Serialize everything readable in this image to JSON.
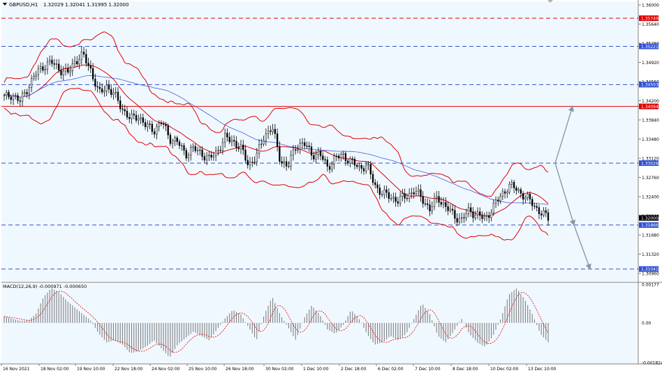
{
  "header": {
    "symbol": "GBPUSD,H1",
    "ohlc": "1.32029 1.32041 1.31995 1.32000"
  },
  "macd_label": "MACD(12,26,9) -0.000971 -0.000650",
  "colors": {
    "background": "#f0f8ff",
    "grid": "#c8d2dc",
    "candle": "#000000",
    "bollinger": "#e00000",
    "ma": "#4060e0",
    "level_blue": "#3050d0",
    "level_red": "#e00000",
    "arrow": "#8a98a8",
    "macd_hist": "#808080",
    "macd_signal": "#e00000"
  },
  "chart_data": [
    {
      "type": "candlestick",
      "instrument": "GBPUSD",
      "timeframe": "H1",
      "last_price": "1.32000",
      "ylim": [
        1.3096,
        1.36
      ],
      "y_ticks": [
        "1.36000",
        "1.35640",
        "1.35280",
        "1.34920",
        "1.34560",
        "1.34200",
        "1.33840",
        "1.33480",
        "1.33120",
        "1.32760",
        "1.32400",
        "1.32040",
        "1.31680",
        "1.31320",
        "1.30960"
      ],
      "x_ticks": [
        "16 Nov 2021",
        "18 Nov 02:00",
        "19 Nov 10:00",
        "22 Nov 18:00",
        "24 Nov 02:00",
        "25 Nov 10:00",
        "26 Nov 18:00",
        "30 Nov 02:00",
        "1 Dec 10:00",
        "2 Dec 18:00",
        "6 Dec 02:00",
        "7 Dec 10:00",
        "8 Dec 18:00",
        "10 Dec 02:00",
        "13 Dec 10:00"
      ],
      "close_series": [
        1.3426,
        1.3432,
        1.3418,
        1.3445,
        1.347,
        1.3486,
        1.3492,
        1.348,
        1.347,
        1.3495,
        1.3505,
        1.3478,
        1.3432,
        1.3448,
        1.343,
        1.3405,
        1.3385,
        1.3392,
        1.3372,
        1.3365,
        1.338,
        1.335,
        1.3342,
        1.332,
        1.333,
        1.3322,
        1.331,
        1.3325,
        1.335,
        1.3345,
        1.333,
        1.33,
        1.3315,
        1.3355,
        1.337,
        1.331,
        1.3296,
        1.3335,
        1.334,
        1.332,
        1.332,
        1.3296,
        1.3312,
        1.3318,
        1.3305,
        1.3295,
        1.3298,
        1.3262,
        1.3245,
        1.324,
        1.3232,
        1.3242,
        1.325,
        1.3238,
        1.3215,
        1.324,
        1.322,
        1.3206,
        1.3195,
        1.3215,
        1.3205,
        1.3198,
        1.322,
        1.3242,
        1.326,
        1.3255,
        1.324,
        1.3228,
        1.321,
        1.32
      ],
      "levels": [
        {
          "label": "1.35749",
          "value": 1.35749,
          "color": "red",
          "style": "dashed"
        },
        {
          "label": "1.35221",
          "value": 1.35221,
          "color": "blue",
          "style": "dashed"
        },
        {
          "label": "1.34503",
          "value": 1.34503,
          "color": "blue",
          "style": "dashed"
        },
        {
          "label": "1.34094",
          "value": 1.34094,
          "color": "red",
          "style": "solid"
        },
        {
          "label": "1.33028",
          "value": 1.33028,
          "color": "blue",
          "style": "dashed"
        },
        {
          "label": "1.31866",
          "value": 1.31866,
          "color": "blue",
          "style": "dashed"
        },
        {
          "label": "1.31041",
          "value": 1.31041,
          "color": "blue",
          "style": "dashed"
        }
      ],
      "arrows": [
        {
          "from": 1.33028,
          "to": 1.34094
        },
        {
          "from": 1.33028,
          "to": 1.31866
        },
        {
          "from": 1.31866,
          "to": 1.31041
        }
      ]
    },
    {
      "type": "bar",
      "name": "MACD(12,26,9)",
      "values_text": "-0.000971 -0.000650",
      "y_ticks": [
        "0.00177",
        "0.00",
        "-0.001824"
      ],
      "ylim": [
        -0.001824,
        0.00177
      ],
      "histogram": [
        0.0003,
        0.0002,
        0.0001,
        0.0001,
        0.0004,
        0.0012,
        0.0016,
        0.0014,
        0.001,
        0.0007,
        0.0004,
        0.0001,
        -0.0005,
        -0.0009,
        -0.0008,
        -0.001,
        -0.0014,
        -0.0013,
        -0.0011,
        -0.0008,
        -0.0012,
        -0.0016,
        -0.001,
        -0.0007,
        -0.0004,
        -0.0006,
        -0.0008,
        -0.0003,
        0.0002,
        0.0006,
        0.0004,
        -0.0002,
        -0.0008,
        0.0004,
        0.0012,
        0.0004,
        -0.0002,
        -0.0008,
        0.0002,
        0.0008,
        0.0004,
        -0.0003,
        -0.0005,
        -0.0001,
        0.0006,
        0.0002,
        -0.0005,
        -0.001,
        -0.0009,
        -0.0006,
        -0.0008,
        -0.0005,
        0.0002,
        0.0009,
        0.0004,
        -0.0006,
        -0.0009,
        -0.0004,
        0.0002,
        -0.0005,
        -0.0009,
        -0.0011,
        -0.0006,
        0.0002,
        0.0013,
        0.0016,
        0.0011,
        0.0004,
        -0.0005,
        -0.0009
      ]
    }
  ]
}
